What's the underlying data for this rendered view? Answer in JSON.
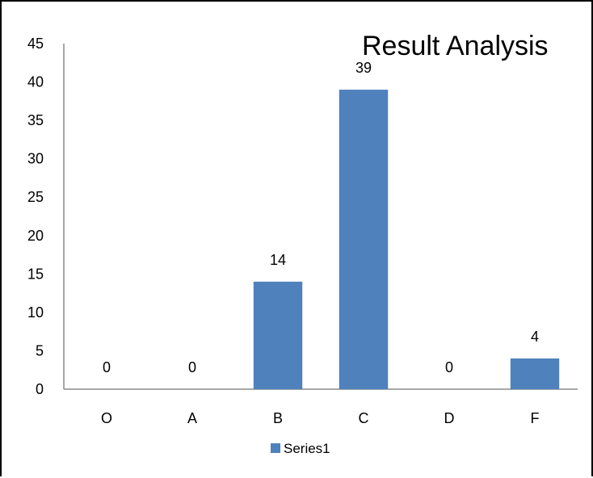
{
  "chart_data": {
    "type": "bar",
    "title": "Result Analysis",
    "categories": [
      "O",
      "A",
      "B",
      "C",
      "D",
      "F"
    ],
    "series": [
      {
        "name": "Series1",
        "values": [
          0,
          0,
          14,
          39,
          0,
          4
        ],
        "color": "#4F81BD"
      }
    ],
    "ylim": [
      0,
      45
    ],
    "yticks": [
      0,
      5,
      10,
      15,
      20,
      25,
      30,
      35,
      40,
      45
    ],
    "grid": false,
    "legend": "bottom",
    "data_labels": true
  }
}
